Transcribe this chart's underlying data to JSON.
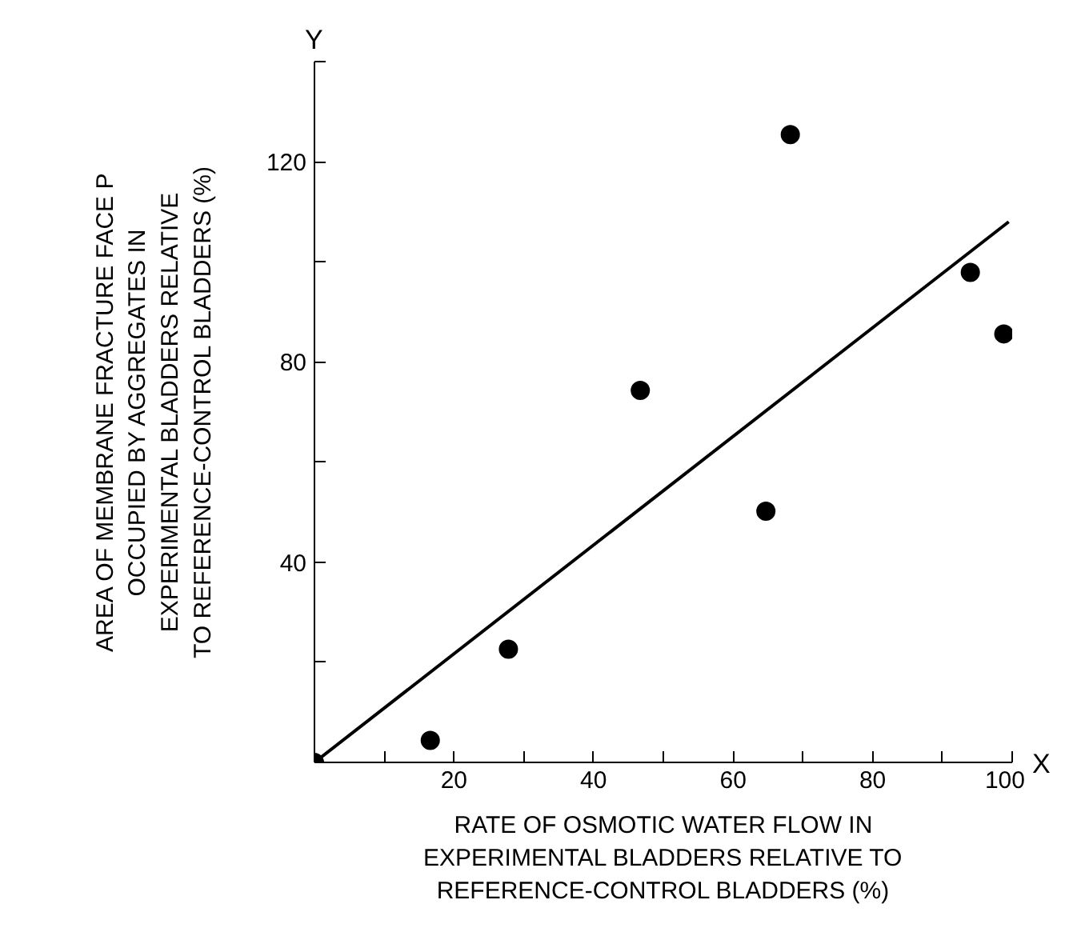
{
  "chart_data": {
    "type": "scatter",
    "xlabel": "RATE OF OSMOTIC WATER FLOW IN\nEXPERIMENTAL BLADDERS RELATIVE TO\nREFERENCE-CONTROL BLADDERS (%)",
    "ylabel": "AREA OF MEMBRANE FRACTURE FACE P\nOCCUPIED BY AGGREGATES IN\nEXPERIMENTAL BLADDERS RELATIVE\nTO REFERENCE-CONTROL BLADDERS (%)",
    "annotations": [
      "X",
      "Y"
    ],
    "series": [
      {
        "marker": "circle",
        "color": "#000000",
        "x": [
          0,
          16.6,
          27.8,
          46.7,
          64.7,
          68.2,
          94.0,
          98.8
        ],
        "values": [
          0,
          4.4,
          22.6,
          74.3,
          50.2,
          125.4,
          97.9,
          85.6
        ]
      },
      {
        "type": "line",
        "line_style": "solid",
        "color": "#000000",
        "x": [
          0,
          99.5
        ],
        "values": [
          0,
          108
        ]
      }
    ],
    "xlim": [
      0,
      100
    ],
    "ylim": [
      0,
      140
    ],
    "xticks": [
      {
        "value": 10,
        "label": null
      },
      20,
      {
        "value": 30,
        "label": null
      },
      40,
      {
        "value": 50,
        "label": null
      },
      60,
      {
        "value": 70,
        "label": null
      },
      80,
      {
        "value": 90,
        "label": null
      },
      100
    ],
    "yticks": [
      {
        "value": 20,
        "label": null
      },
      40,
      {
        "value": 60,
        "label": null
      },
      80,
      {
        "value": 100,
        "label": null
      },
      120,
      {
        "value": 140,
        "label": null
      }
    ],
    "grid": false
  }
}
